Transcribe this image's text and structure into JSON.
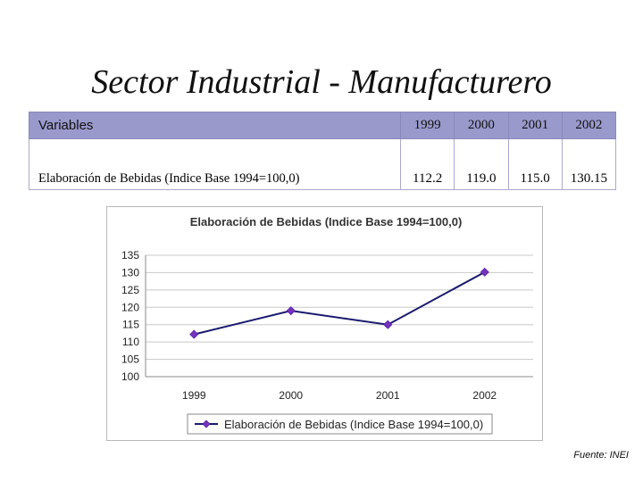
{
  "slide": {
    "title": "Sector Industrial - Manufacturero",
    "source": "Fuente: INEI"
  },
  "table": {
    "header": [
      "Variables",
      "1999",
      "2000",
      "2001",
      "2002"
    ],
    "row": [
      "Elaboración de Bebidas (Indice Base 1994=100,0)",
      "112.2",
      "119.0",
      "115.0",
      "130.15"
    ]
  },
  "colors": {
    "table_header": "#9999cc",
    "line": "#1a1a6e",
    "marker": "#7733bb"
  },
  "chart_data": {
    "type": "line",
    "title": "Elaboración de Bebidas (Indice Base 1994=100,0)",
    "categories": [
      "1999",
      "2000",
      "2001",
      "2002"
    ],
    "series": [
      {
        "name": "Elaboración de Bebidas (Indice Base 1994=100,0)",
        "values": [
          112.2,
          119.0,
          115.0,
          130.15
        ]
      }
    ],
    "ylim": [
      100,
      135
    ],
    "yticks": [
      100,
      105,
      110,
      115,
      120,
      125,
      130,
      135
    ],
    "grid": true,
    "legend": "bottom"
  }
}
